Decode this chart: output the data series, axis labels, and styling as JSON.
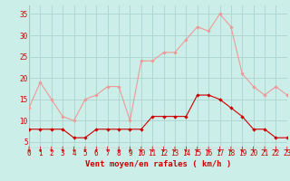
{
  "hours": [
    0,
    1,
    2,
    3,
    4,
    5,
    6,
    7,
    8,
    9,
    10,
    11,
    12,
    13,
    14,
    15,
    16,
    17,
    18,
    19,
    20,
    21,
    22,
    23
  ],
  "wind_avg": [
    8,
    8,
    8,
    8,
    6,
    6,
    8,
    8,
    8,
    8,
    8,
    11,
    11,
    11,
    11,
    16,
    16,
    15,
    13,
    11,
    8,
    8,
    6,
    6
  ],
  "wind_gust": [
    13,
    19,
    15,
    11,
    10,
    15,
    16,
    18,
    18,
    10,
    24,
    24,
    26,
    26,
    29,
    32,
    31,
    35,
    32,
    21,
    18,
    16,
    18,
    16
  ],
  "bg_color": "#cceee8",
  "grid_color": "#aad4ce",
  "avg_color": "#cc0000",
  "gust_color": "#ee9999",
  "xlabel": "Vent moyen/en rafales ( km/h )",
  "ylabel_values": [
    5,
    10,
    15,
    20,
    25,
    30,
    35
  ],
  "ylim": [
    3.5,
    37
  ],
  "xlim": [
    0,
    23
  ],
  "tick_fontsize": 5.5,
  "xlabel_fontsize": 6.5
}
